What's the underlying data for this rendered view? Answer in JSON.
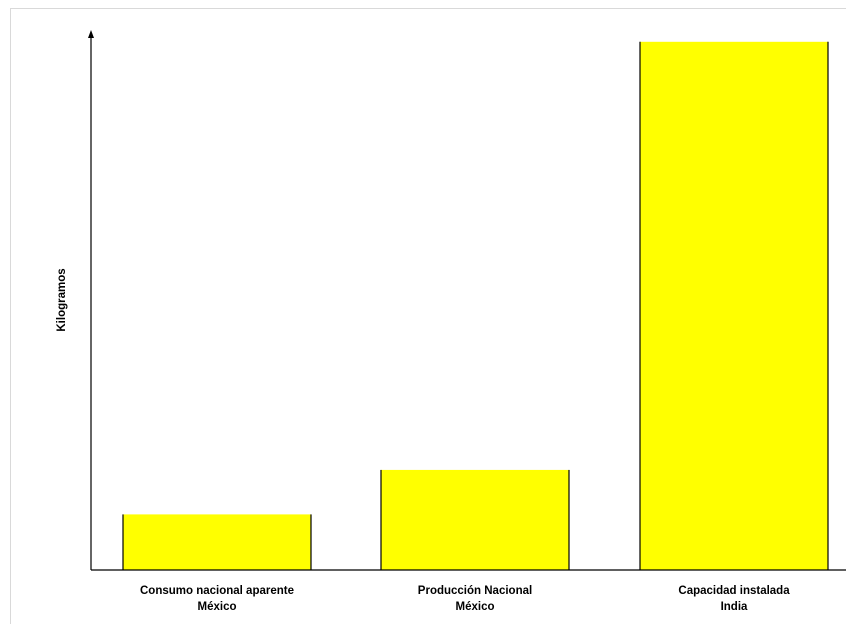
{
  "chart_data": {
    "type": "bar",
    "title": "",
    "xlabel": "",
    "ylabel": "Kilogramos",
    "categories": [
      [
        "Consumo nacional aparente",
        "México"
      ],
      [
        "Producción Nacional",
        "México"
      ],
      [
        "Capacidad instalada",
        "India"
      ]
    ],
    "values": [
      10,
      18,
      95
    ],
    "ylim": [
      0,
      100
    ],
    "grid": false,
    "y_tick_labels_shown": false,
    "bar_color": "#ffff00",
    "bar_edge_color": "#000000"
  }
}
